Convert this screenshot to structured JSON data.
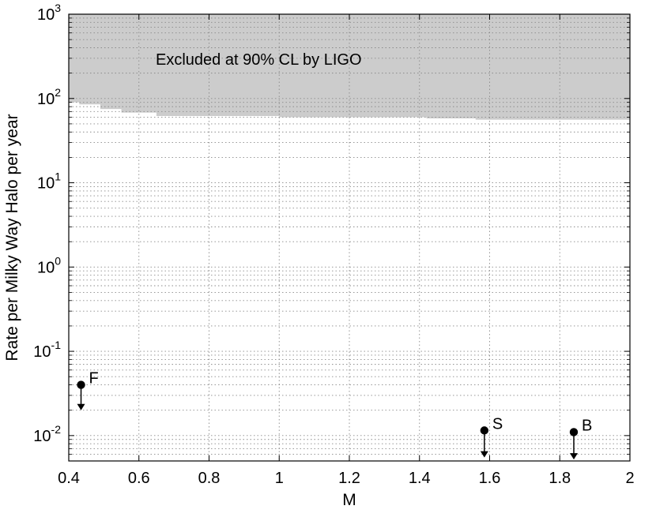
{
  "chart_data": {
    "type": "scatter",
    "xlabel": "M",
    "ylabel": "Rate per Milky Way Halo per year",
    "xlim": [
      0.4,
      2.0
    ],
    "ylim": [
      0.005,
      1000
    ],
    "yscale": "log",
    "grid": true,
    "x_ticks": [
      "0.4",
      "0.6",
      "0.8",
      "1",
      "1.2",
      "1.4",
      "1.6",
      "1.8",
      "2"
    ],
    "y_ticks": [
      {
        "base": "10",
        "exp": "-2",
        "value": 0.01
      },
      {
        "base": "10",
        "exp": "-1",
        "value": 0.1
      },
      {
        "base": "10",
        "exp": "0",
        "value": 1
      },
      {
        "base": "10",
        "exp": "1",
        "value": 10
      },
      {
        "base": "10",
        "exp": "2",
        "value": 100
      },
      {
        "base": "10",
        "exp": "3",
        "value": 1000
      }
    ],
    "excluded_region": {
      "label": "Excluded at 90% CL by LIGO",
      "color": "#cccccc",
      "boundary": [
        {
          "x": 0.4,
          "y": 90
        },
        {
          "x": 0.43,
          "y": 90
        },
        {
          "x": 0.43,
          "y": 85
        },
        {
          "x": 0.49,
          "y": 85
        },
        {
          "x": 0.49,
          "y": 75
        },
        {
          "x": 0.55,
          "y": 75
        },
        {
          "x": 0.55,
          "y": 68
        },
        {
          "x": 0.65,
          "y": 68
        },
        {
          "x": 0.65,
          "y": 62
        },
        {
          "x": 1.0,
          "y": 62
        },
        {
          "x": 1.0,
          "y": 60
        },
        {
          "x": 1.42,
          "y": 60
        },
        {
          "x": 1.42,
          "y": 58
        },
        {
          "x": 1.56,
          "y": 58
        },
        {
          "x": 1.56,
          "y": 56
        },
        {
          "x": 2.0,
          "y": 56
        }
      ]
    },
    "points": [
      {
        "label": "F",
        "x": 0.435,
        "y": 0.04,
        "arrow_to": 0.02
      },
      {
        "label": "S",
        "x": 1.585,
        "y": 0.0115,
        "arrow_to": 0.0055
      },
      {
        "label": "B",
        "x": 1.84,
        "y": 0.011,
        "arrow_to": 0.0052
      }
    ]
  }
}
